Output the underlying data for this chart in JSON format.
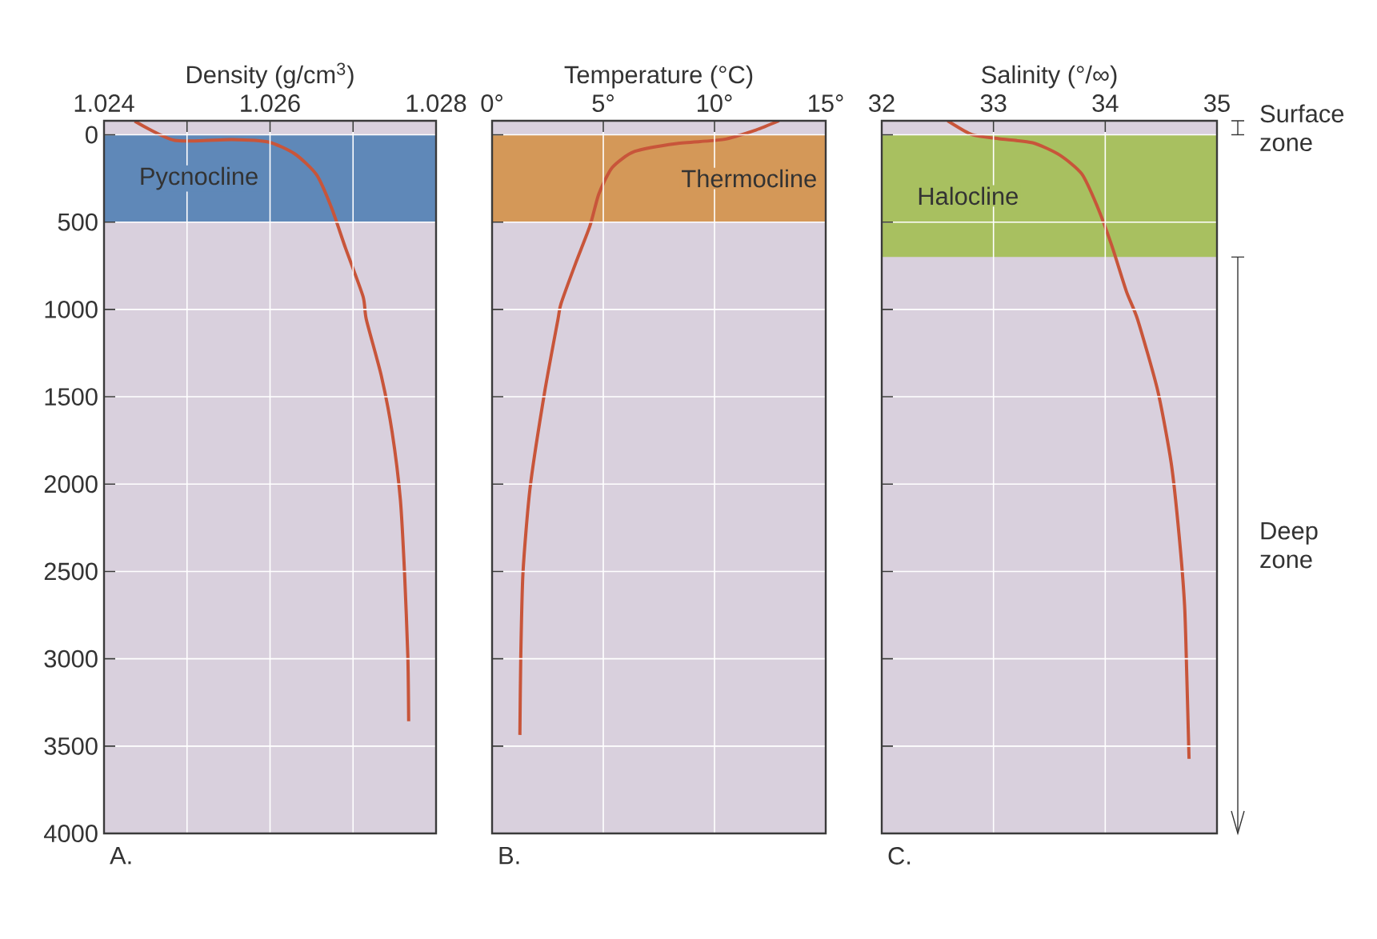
{
  "chart_data": [
    {
      "type": "line",
      "xlabel": "Density (g/cm$^{3}$)",
      "xlim": [
        1.024,
        1.028
      ],
      "xticks": [
        1.024,
        {
          "value": 1.025,
          "label": null
        },
        1.026,
        {
          "value": 1.027,
          "label": null
        },
        1.028
      ],
      "ylim": [
        4000,
        -80
      ],
      "yticks": [
        0,
        500,
        1000,
        1500,
        2000,
        2500,
        3000,
        3500,
        4000
      ],
      "grid": true,
      "series": [
        {
          "color": "#c8553a",
          "x": [
            1.02437,
            1.02485,
            1.02554,
            1.02598,
            1.0263,
            1.02656,
            1.02674,
            1.02691,
            1.02712,
            1.02716,
            1.02734,
            1.02747,
            1.02757,
            1.02762,
            1.02766,
            1.02767
          ],
          "values": [
            -78,
            32,
            27,
            41,
            110,
            229,
            417,
            650,
            925,
            1058,
            1379,
            1700,
            2089,
            2506,
            2987,
            3358
          ]
        }
      ],
      "bands": [
        {
          "axis": "y",
          "from": 0,
          "to": 500,
          "label": "Pycnocline",
          "color": "#5f88b8"
        }
      ],
      "annotations": [
        "A."
      ]
    },
    {
      "type": "line",
      "xlabel": "Temperature (°C)",
      "xlim": [
        0,
        15
      ],
      "xticks": [
        {
          "value": 0,
          "label": "0°"
        },
        {
          "value": 5,
          "label": "5°"
        },
        {
          "value": 10,
          "label": "10°"
        },
        {
          "value": 15,
          "label": "15°"
        }
      ],
      "ylim": [
        4000,
        -80
      ],
      "yticks": [
        0,
        500,
        1000,
        1500,
        2000,
        2500,
        3000,
        3500,
        4000
      ],
      "grid": true,
      "tick_labels": "x",
      "series": [
        {
          "color": "#c8553a",
          "x": [
            12.9,
            11.86,
            10.4,
            8.3,
            6.4,
            5.4,
            4.8,
            4.4,
            3.75,
            3.1,
            2.96,
            2.36,
            1.71,
            1.39,
            1.29,
            1.25
          ],
          "values": [
            -80,
            -27,
            27,
            50,
            96,
            188,
            339,
            522,
            738,
            967,
            1058,
            1475,
            2020,
            2506,
            2987,
            3436
          ]
        }
      ],
      "bands": [
        {
          "axis": "y",
          "from": 0,
          "to": 500,
          "label": "Thermocline",
          "color": "#d49858"
        }
      ],
      "annotations": [
        "B."
      ]
    },
    {
      "type": "line",
      "xlabel": "Salinity (°/∞)",
      "xlim": [
        32,
        35
      ],
      "xticks": [
        32,
        33,
        34,
        35
      ],
      "ylim": [
        4000,
        -80
      ],
      "yticks": [
        0,
        500,
        1000,
        1500,
        2000,
        2500,
        3000,
        3500,
        4000
      ],
      "grid": true,
      "tick_labels": "x",
      "series": [
        {
          "color": "#c8553a",
          "x": [
            32.59,
            32.81,
            33.05,
            33.35,
            33.59,
            33.79,
            33.93,
            34.06,
            34.19,
            34.29,
            34.47,
            34.59,
            34.66,
            34.71,
            34.73,
            34.75
          ],
          "values": [
            -80,
            0,
            23,
            46,
            115,
            224,
            412,
            637,
            898,
            1058,
            1466,
            1878,
            2286,
            2694,
            3101,
            3573
          ]
        }
      ],
      "bands": [
        {
          "axis": "y",
          "from": 0,
          "to": 700,
          "label": "Halocline",
          "color": "#a8c060"
        }
      ],
      "annotations": [
        "C.",
        "Surface zone",
        "Deep zone"
      ]
    }
  ]
}
